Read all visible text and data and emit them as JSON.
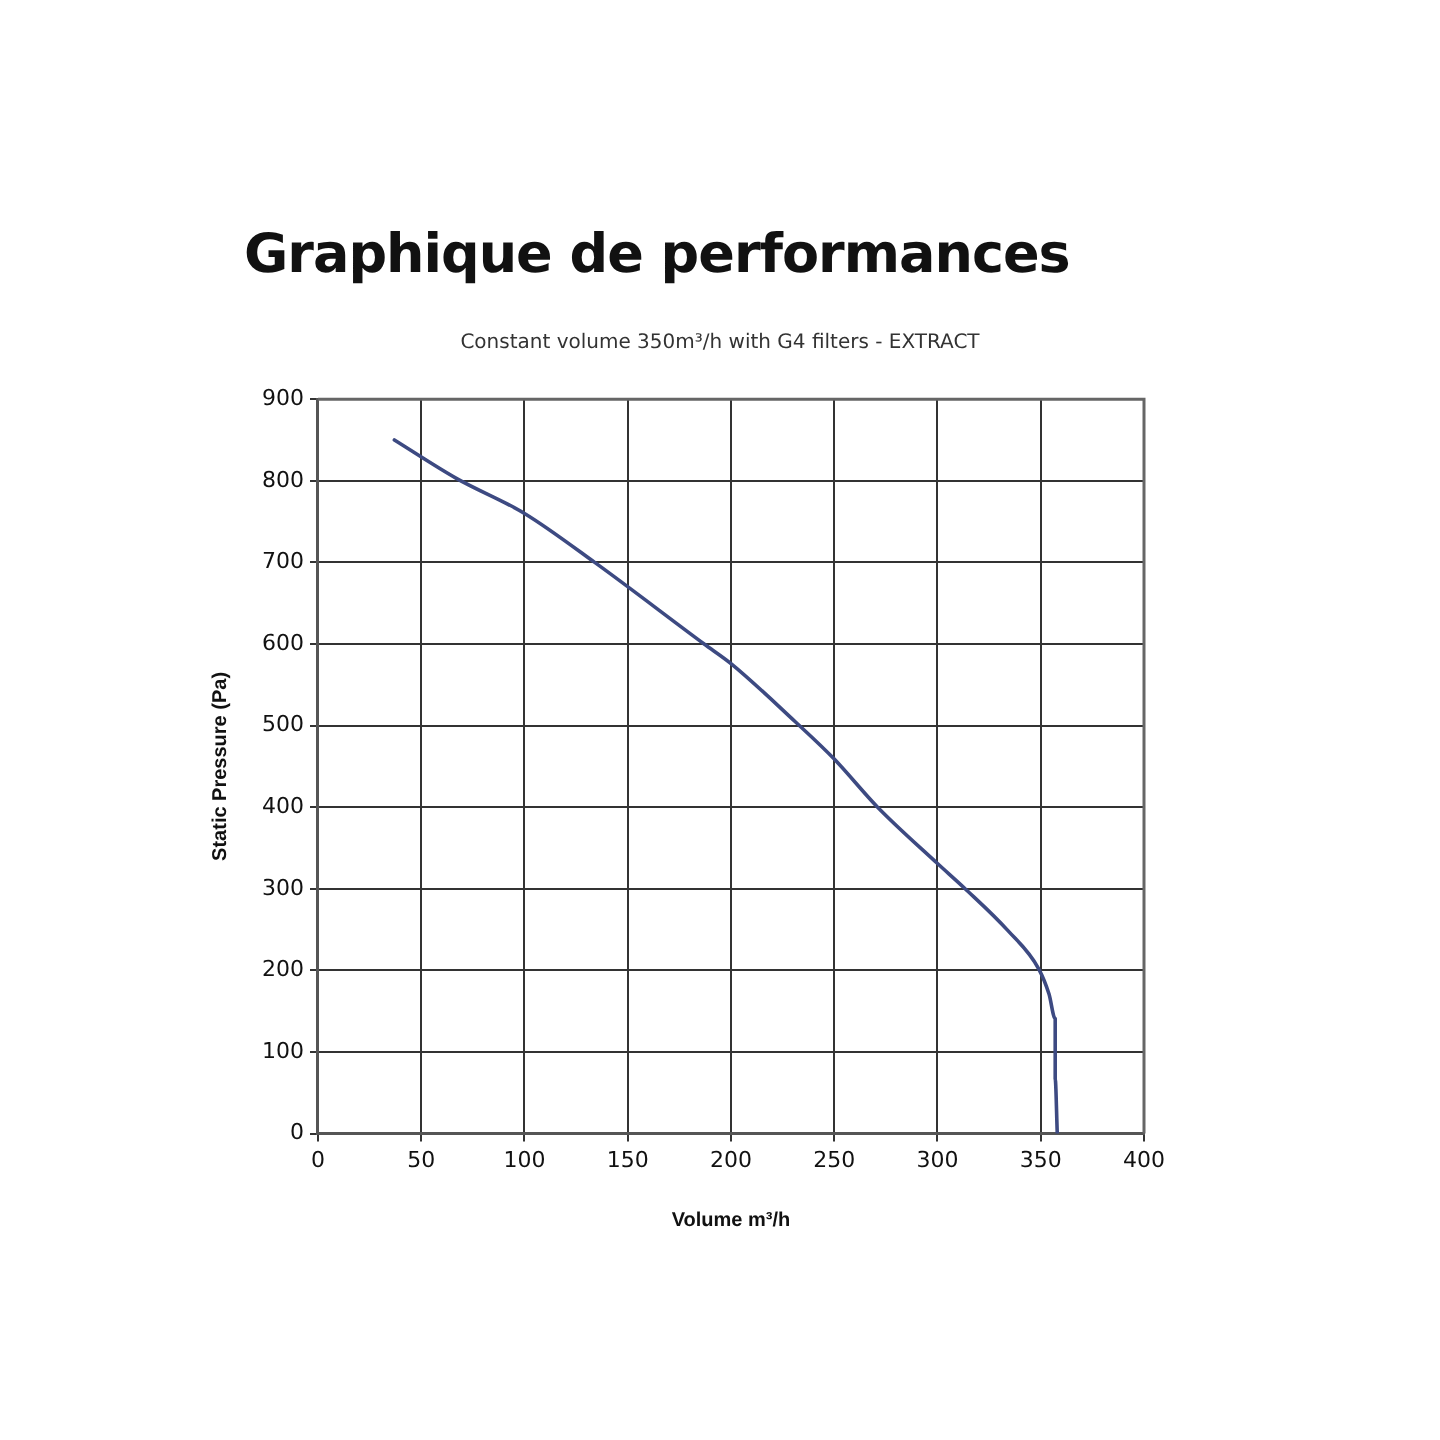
{
  "chart_data": {
    "type": "line",
    "title": "Graphique de performances",
    "subtitle": "Constant volume 350m³/h with G4 filters - EXTRACT",
    "xlabel": "Volume m³/h",
    "ylabel": "Static Pressure (Pa)",
    "x": [
      37,
      67,
      100,
      134,
      187,
      200,
      231,
      250,
      271,
      300,
      313,
      334,
      349,
      354,
      357,
      357,
      357,
      358
    ],
    "values": [
      850,
      803,
      760,
      700,
      600,
      576,
      505,
      459,
      400,
      331,
      301,
      249,
      202,
      171,
      141,
      102,
      67,
      0
    ],
    "color": "#3d4a82",
    "marker": "none",
    "line_style": "solid",
    "grid": true,
    "xlim": [
      0,
      400
    ],
    "xticks": [
      0,
      50,
      100,
      150,
      200,
      250,
      300,
      350,
      400
    ],
    "ylim": [
      0,
      900
    ],
    "yticks": [
      0,
      100,
      200,
      300,
      400,
      500,
      600,
      700,
      800,
      900
    ]
  }
}
